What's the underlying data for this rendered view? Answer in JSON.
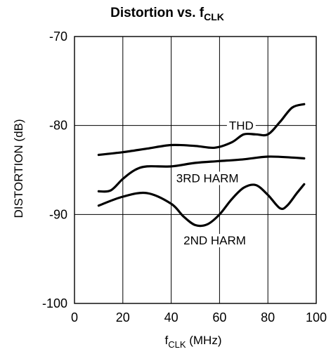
{
  "chart_data": {
    "type": "line",
    "title": "Distortion vs. f",
    "title_subscript": "CLK",
    "xlabel": "f",
    "xlabel_subscript": "CLK",
    "xlabel_unit": " (MHz)",
    "ylabel": "DISTORTION (dB)",
    "xlim": [
      0,
      100
    ],
    "ylim": [
      -100,
      -70
    ],
    "x_ticks": [
      0,
      20,
      40,
      60,
      80,
      100
    ],
    "x_tick_labels": [
      "0",
      "20",
      "40",
      "60",
      "80",
      "100"
    ],
    "y_ticks": [
      -70,
      -80,
      -90,
      -100
    ],
    "y_tick_labels": [
      "-70",
      "-80",
      "-90",
      "-100"
    ],
    "grid": true,
    "series": [
      {
        "name": "THD",
        "x": [
          10,
          20,
          30,
          40,
          50,
          58,
          65,
          70,
          75,
          80,
          85,
          90,
          95
        ],
        "y": [
          -83.3,
          -83.0,
          -82.6,
          -82.2,
          -82.3,
          -82.5,
          -81.9,
          -81.0,
          -81.0,
          -81.0,
          -79.6,
          -78.0,
          -77.6
        ]
      },
      {
        "name": "3RD HARM",
        "x": [
          10,
          15,
          20,
          25,
          30,
          40,
          50,
          60,
          70,
          80,
          90,
          95
        ],
        "y": [
          -87.4,
          -87.3,
          -86.0,
          -85.0,
          -84.6,
          -84.6,
          -84.2,
          -84.0,
          -83.8,
          -83.5,
          -83.6,
          -83.7
        ]
      },
      {
        "name": "2ND HARM",
        "x": [
          10,
          20,
          30,
          40,
          45,
          50,
          55,
          60,
          65,
          70,
          75,
          80,
          85,
          88,
          92,
          95
        ],
        "y": [
          -89.0,
          -88.0,
          -87.6,
          -88.8,
          -90.2,
          -91.2,
          -91.1,
          -90.0,
          -88.3,
          -87.0,
          -86.7,
          -87.8,
          -89.3,
          -89.0,
          -87.6,
          -86.6
        ]
      }
    ]
  }
}
